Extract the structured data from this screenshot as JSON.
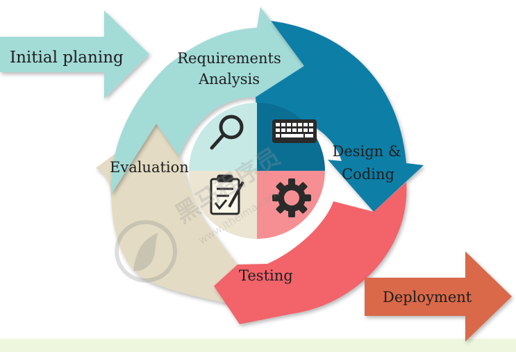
{
  "stages": {
    "initial": "Initial planing",
    "requirements_line1": "Requirements",
    "requirements_line2": "Analysis",
    "design_line1": "Design &",
    "design_line2": "Coding",
    "testing": "Testing",
    "evaluation": "Evaluation",
    "deployment": "Deployment"
  },
  "watermark": {
    "brand": "黑马程序员",
    "url": "www.itheima.com"
  },
  "colors": {
    "teal_light": "#a3dbd7",
    "teal_dark": "#0d7ea6",
    "coral": "#f2646b",
    "beige": "#e3dbc3",
    "orange": "#d9694a",
    "center_white": "#ffffff",
    "bottom_band": "#eef6dd"
  },
  "icons": [
    "magnifier-icon",
    "keyboard-icon",
    "gear-icon",
    "checklist-icon"
  ]
}
